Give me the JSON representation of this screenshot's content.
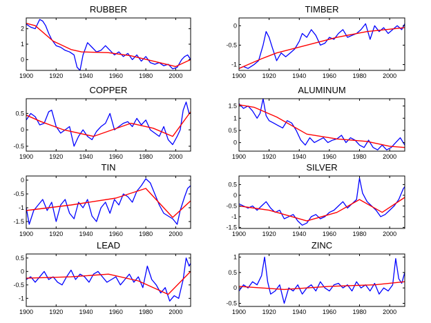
{
  "colors": {
    "raw": "#0000ff",
    "trend": "#ff0000",
    "axes": "#000000",
    "background": "#ffffff"
  },
  "chart_data": [
    {
      "type": "line",
      "title": "RUBBER",
      "xlim": [
        1900,
        2010
      ],
      "ylim": [
        -0.7,
        2.7
      ],
      "xticks": [
        1900,
        1920,
        1940,
        1960,
        1980,
        2000
      ],
      "yticks": [
        0,
        1,
        2
      ],
      "grid": false,
      "series": [
        {
          "role": "raw",
          "x": [
            1900,
            1903,
            1906,
            1909,
            1911,
            1913,
            1915,
            1917,
            1920,
            1923,
            1926,
            1929,
            1932,
            1934,
            1936,
            1938,
            1941,
            1944,
            1947,
            1950,
            1953,
            1956,
            1959,
            1962,
            1965,
            1968,
            1971,
            1974,
            1977,
            1980,
            1983,
            1986,
            1989,
            1992,
            1995,
            1998,
            2001,
            2004,
            2006,
            2008,
            2010
          ],
          "y": [
            2.3,
            2.1,
            2.0,
            2.6,
            2.5,
            2.2,
            1.7,
            1.3,
            0.9,
            0.8,
            0.6,
            0.5,
            0.3,
            -0.5,
            -0.7,
            0.3,
            1.1,
            0.8,
            0.5,
            0.6,
            0.9,
            0.6,
            0.3,
            0.5,
            0.2,
            0.4,
            0.0,
            0.3,
            -0.1,
            0.2,
            -0.2,
            -0.3,
            -0.2,
            -0.4,
            -0.3,
            -0.6,
            -0.5,
            0.0,
            0.2,
            0.3,
            0.0
          ]
        },
        {
          "role": "trend",
          "x": [
            1900,
            1906,
            1918,
            1930,
            1937,
            1955,
            1970,
            1985,
            2000,
            2010
          ],
          "y": [
            2.35,
            2.2,
            1.2,
            0.65,
            0.5,
            0.45,
            0.25,
            -0.1,
            -0.45,
            0.0
          ]
        }
      ]
    },
    {
      "type": "line",
      "title": "TIMBER",
      "xlim": [
        1900,
        2010
      ],
      "ylim": [
        -1.15,
        0.2
      ],
      "xticks": [
        1900,
        1920,
        1940,
        1960,
        1980,
        2000
      ],
      "yticks": [
        -1,
        -0.5,
        0
      ],
      "yticklabels": [
        "-1",
        "-0.5",
        "0"
      ],
      "grid": false,
      "series": [
        {
          "role": "raw",
          "x": [
            1900,
            1903,
            1906,
            1910,
            1913,
            1916,
            1918,
            1920,
            1922,
            1925,
            1928,
            1931,
            1934,
            1937,
            1940,
            1942,
            1945,
            1948,
            1951,
            1954,
            1957,
            1960,
            1963,
            1966,
            1969,
            1972,
            1975,
            1978,
            1981,
            1984,
            1987,
            1990,
            1993,
            1996,
            1999,
            2002,
            2005,
            2008,
            2010
          ],
          "y": [
            -1.1,
            -1.05,
            -1.1,
            -1.0,
            -0.9,
            -0.5,
            -0.15,
            -0.3,
            -0.55,
            -0.9,
            -0.7,
            -0.8,
            -0.7,
            -0.6,
            -0.4,
            -0.2,
            -0.3,
            -0.1,
            -0.25,
            -0.5,
            -0.45,
            -0.3,
            -0.35,
            -0.2,
            -0.1,
            -0.3,
            -0.25,
            -0.2,
            -0.1,
            0.05,
            -0.35,
            0.0,
            -0.15,
            -0.05,
            -0.2,
            -0.1,
            0.0,
            -0.1,
            0.05
          ]
        },
        {
          "role": "trend",
          "x": [
            1900,
            1915,
            1925,
            1945,
            1965,
            1985,
            2010
          ],
          "y": [
            -1.1,
            -0.85,
            -0.7,
            -0.5,
            -0.3,
            -0.15,
            -0.05
          ]
        }
      ]
    },
    {
      "type": "line",
      "title": "COPPER",
      "xlim": [
        1900,
        2010
      ],
      "ylim": [
        -0.65,
        0.95
      ],
      "xticks": [
        1900,
        1920,
        1940,
        1960,
        1980,
        2000
      ],
      "yticks": [
        -0.5,
        0,
        0.5
      ],
      "yticklabels": [
        "-0.5",
        "0",
        "0.5"
      ],
      "grid": false,
      "series": [
        {
          "role": "raw",
          "x": [
            1900,
            1903,
            1906,
            1909,
            1912,
            1915,
            1917,
            1920,
            1923,
            1926,
            1929,
            1932,
            1935,
            1938,
            1941,
            1944,
            1947,
            1950,
            1953,
            1956,
            1959,
            1962,
            1965,
            1968,
            1971,
            1974,
            1977,
            1980,
            1983,
            1986,
            1989,
            1992,
            1995,
            1998,
            2001,
            2003,
            2005,
            2007,
            2009,
            2010
          ],
          "y": [
            0.3,
            0.5,
            0.4,
            0.15,
            0.2,
            0.55,
            0.6,
            0.1,
            -0.1,
            0.0,
            0.1,
            -0.5,
            -0.2,
            0.0,
            -0.2,
            -0.3,
            -0.05,
            0.1,
            0.2,
            0.5,
            0.0,
            0.1,
            0.2,
            0.25,
            0.1,
            0.35,
            0.15,
            0.3,
            0.0,
            -0.1,
            -0.2,
            0.1,
            -0.3,
            -0.45,
            -0.2,
            0.0,
            0.6,
            0.85,
            0.5,
            0.5
          ]
        },
        {
          "role": "trend",
          "x": [
            1900,
            1910,
            1925,
            1945,
            1970,
            1985,
            1998,
            2010
          ],
          "y": [
            0.45,
            0.25,
            0.0,
            -0.2,
            0.2,
            0.05,
            -0.2,
            0.55
          ]
        }
      ]
    },
    {
      "type": "line",
      "title": "ALUMINUM",
      "xlim": [
        1900,
        2010
      ],
      "ylim": [
        -0.35,
        1.8
      ],
      "xticks": [
        1900,
        1920,
        1940,
        1960,
        1980,
        2000
      ],
      "yticks": [
        0,
        0.5,
        1,
        1.5
      ],
      "yticklabels": [
        "0",
        "0.5",
        "1",
        "1.5"
      ],
      "grid": false,
      "series": [
        {
          "role": "raw",
          "x": [
            1900,
            1903,
            1906,
            1909,
            1912,
            1914,
            1916,
            1918,
            1920,
            1923,
            1926,
            1929,
            1932,
            1935,
            1938,
            1941,
            1944,
            1947,
            1950,
            1953,
            1956,
            1959,
            1962,
            1965,
            1968,
            1971,
            1974,
            1977,
            1980,
            1983,
            1986,
            1989,
            1992,
            1995,
            1998,
            2001,
            2004,
            2007,
            2010
          ],
          "y": [
            1.6,
            1.4,
            1.5,
            1.3,
            1.0,
            1.2,
            1.8,
            1.1,
            0.9,
            0.8,
            0.7,
            0.6,
            0.9,
            0.8,
            0.5,
            0.1,
            -0.1,
            0.2,
            0.0,
            0.1,
            0.2,
            0.0,
            0.1,
            0.15,
            0.3,
            0.0,
            0.2,
            0.1,
            -0.1,
            -0.2,
            0.1,
            -0.2,
            -0.3,
            -0.1,
            -0.3,
            -0.2,
            0.0,
            0.2,
            -0.1
          ]
        },
        {
          "role": "trend",
          "x": [
            1900,
            1910,
            1925,
            1945,
            1965,
            1985,
            2000,
            2010
          ],
          "y": [
            1.55,
            1.45,
            1.05,
            0.35,
            0.15,
            0.05,
            -0.15,
            -0.2
          ]
        }
      ]
    },
    {
      "type": "line",
      "title": "TIN",
      "xlim": [
        1900,
        2010
      ],
      "ylim": [
        -1.75,
        0.15
      ],
      "xticks": [
        1900,
        1920,
        1940,
        1960,
        1980,
        2000
      ],
      "yticks": [
        -1.5,
        -1,
        -0.5,
        0
      ],
      "yticklabels": [
        "-1.5",
        "-1",
        "-0.5",
        "0"
      ],
      "grid": false,
      "series": [
        {
          "role": "raw",
          "x": [
            1900,
            1902,
            1905,
            1908,
            1911,
            1914,
            1917,
            1920,
            1923,
            1926,
            1929,
            1932,
            1935,
            1938,
            1941,
            1944,
            1947,
            1950,
            1953,
            1956,
            1959,
            1962,
            1965,
            1968,
            1971,
            1974,
            1977,
            1980,
            1983,
            1986,
            1989,
            1992,
            1995,
            1998,
            2001,
            2003,
            2006,
            2008,
            2010
          ],
          "y": [
            -1.0,
            -1.6,
            -1.1,
            -0.9,
            -0.7,
            -1.1,
            -0.8,
            -1.5,
            -0.9,
            -0.7,
            -1.2,
            -1.4,
            -0.8,
            -1.0,
            -0.7,
            -1.3,
            -1.5,
            -1.0,
            -0.8,
            -1.2,
            -0.7,
            -0.9,
            -0.5,
            -0.6,
            -0.8,
            -0.4,
            -0.2,
            0.05,
            -0.1,
            -0.5,
            -0.9,
            -1.2,
            -1.3,
            -1.4,
            -1.6,
            -1.1,
            -0.6,
            -0.3,
            -0.2
          ]
        },
        {
          "role": "trend",
          "x": [
            1900,
            1930,
            1960,
            1980,
            1998,
            2010
          ],
          "y": [
            -1.1,
            -0.9,
            -0.65,
            -0.3,
            -1.35,
            -0.75
          ]
        }
      ]
    },
    {
      "type": "line",
      "title": "SILVER",
      "xlim": [
        1900,
        2010
      ],
      "ylim": [
        -1.55,
        0.9
      ],
      "xticks": [
        1900,
        1920,
        1940,
        1960,
        1980,
        2000
      ],
      "yticks": [
        -1.5,
        -1,
        -0.5,
        0,
        0.5
      ],
      "yticklabels": [
        "-1.5",
        "-1",
        "-0.5",
        "0",
        "0.5"
      ],
      "grid": false,
      "series": [
        {
          "role": "raw",
          "x": [
            1900,
            1903,
            1906,
            1909,
            1912,
            1915,
            1918,
            1921,
            1924,
            1927,
            1930,
            1933,
            1936,
            1939,
            1942,
            1945,
            1948,
            1951,
            1954,
            1957,
            1960,
            1963,
            1966,
            1969,
            1972,
            1975,
            1978,
            1980,
            1982,
            1985,
            1988,
            1991,
            1994,
            1997,
            2000,
            2003,
            2006,
            2009,
            2010
          ],
          "y": [
            -0.4,
            -0.5,
            -0.6,
            -0.5,
            -0.7,
            -0.5,
            -0.3,
            -0.6,
            -0.8,
            -0.7,
            -1.1,
            -1.0,
            -0.9,
            -1.2,
            -1.4,
            -1.3,
            -1.0,
            -0.9,
            -1.1,
            -1.0,
            -0.8,
            -0.7,
            -0.5,
            -0.3,
            -0.6,
            -0.4,
            -0.2,
            0.8,
            0.1,
            -0.3,
            -0.5,
            -0.7,
            -1.0,
            -0.9,
            -0.7,
            -0.5,
            -0.2,
            0.3,
            0.4
          ]
        },
        {
          "role": "trend",
          "x": [
            1900,
            1920,
            1945,
            1965,
            1980,
            1995,
            2010
          ],
          "y": [
            -0.5,
            -0.7,
            -1.2,
            -0.8,
            -0.2,
            -0.8,
            -0.1
          ]
        }
      ]
    },
    {
      "type": "line",
      "title": "LEAD",
      "xlim": [
        1900,
        2010
      ],
      "ylim": [
        -1.3,
        0.65
      ],
      "xticks": [
        1900,
        1920,
        1940,
        1960,
        1980,
        2000
      ],
      "yticks": [
        -1,
        -0.5,
        0,
        0.5
      ],
      "yticklabels": [
        "-1",
        "-0.5",
        "0",
        "0.5"
      ],
      "grid": false,
      "series": [
        {
          "role": "raw",
          "x": [
            1900,
            1903,
            1906,
            1909,
            1912,
            1915,
            1918,
            1921,
            1924,
            1927,
            1930,
            1933,
            1936,
            1939,
            1942,
            1945,
            1948,
            1951,
            1954,
            1957,
            1960,
            1963,
            1966,
            1969,
            1972,
            1975,
            1978,
            1981,
            1984,
            1987,
            1990,
            1993,
            1996,
            1999,
            2002,
            2005,
            2007,
            2009,
            2010
          ],
          "y": [
            -0.3,
            -0.2,
            -0.4,
            -0.2,
            0.0,
            -0.3,
            -0.2,
            -0.4,
            -0.5,
            -0.2,
            0.05,
            -0.3,
            -0.1,
            -0.2,
            -0.4,
            -0.1,
            0.0,
            -0.2,
            -0.4,
            -0.3,
            -0.2,
            -0.5,
            -0.3,
            -0.1,
            -0.4,
            -0.2,
            -0.6,
            0.2,
            -0.3,
            -0.5,
            -0.8,
            -0.6,
            -1.1,
            -0.9,
            -1.0,
            -0.3,
            0.5,
            0.2,
            0.3
          ]
        },
        {
          "role": "trend",
          "x": [
            1900,
            1930,
            1955,
            1975,
            1995,
            2010
          ],
          "y": [
            -0.25,
            -0.2,
            -0.1,
            -0.35,
            -0.85,
            0.0
          ]
        }
      ]
    },
    {
      "type": "line",
      "title": "ZINC",
      "xlim": [
        1900,
        2010
      ],
      "ylim": [
        -0.6,
        1.1
      ],
      "xticks": [
        1900,
        1920,
        1940,
        1960,
        1980,
        2000
      ],
      "yticks": [
        -0.5,
        0,
        0.5,
        1
      ],
      "yticklabels": [
        "-0.5",
        "0",
        "0.5",
        "1"
      ],
      "grid": false,
      "series": [
        {
          "role": "raw",
          "x": [
            1900,
            1903,
            1906,
            1909,
            1912,
            1915,
            1917,
            1919,
            1921,
            1924,
            1927,
            1930,
            1933,
            1936,
            1939,
            1942,
            1945,
            1948,
            1951,
            1954,
            1957,
            1960,
            1963,
            1966,
            1969,
            1972,
            1975,
            1978,
            1981,
            1984,
            1987,
            1990,
            1993,
            1996,
            1999,
            2002,
            2004,
            2006,
            2008,
            2010
          ],
          "y": [
            -0.1,
            0.1,
            0.0,
            0.2,
            0.1,
            0.4,
            1.0,
            0.2,
            -0.2,
            -0.1,
            0.1,
            -0.5,
            0.0,
            -0.1,
            0.1,
            -0.2,
            0.0,
            0.1,
            -0.1,
            0.2,
            0.0,
            -0.1,
            0.1,
            0.15,
            0.0,
            0.1,
            -0.1,
            0.2,
            0.0,
            0.1,
            -0.1,
            0.15,
            -0.2,
            0.0,
            -0.1,
            0.1,
            0.95,
            0.3,
            0.15,
            0.5
          ]
        },
        {
          "role": "trend",
          "x": [
            1900,
            1915,
            1930,
            1960,
            1990,
            2010
          ],
          "y": [
            0.05,
            0.0,
            -0.05,
            0.05,
            0.1,
            0.2
          ]
        }
      ]
    }
  ]
}
